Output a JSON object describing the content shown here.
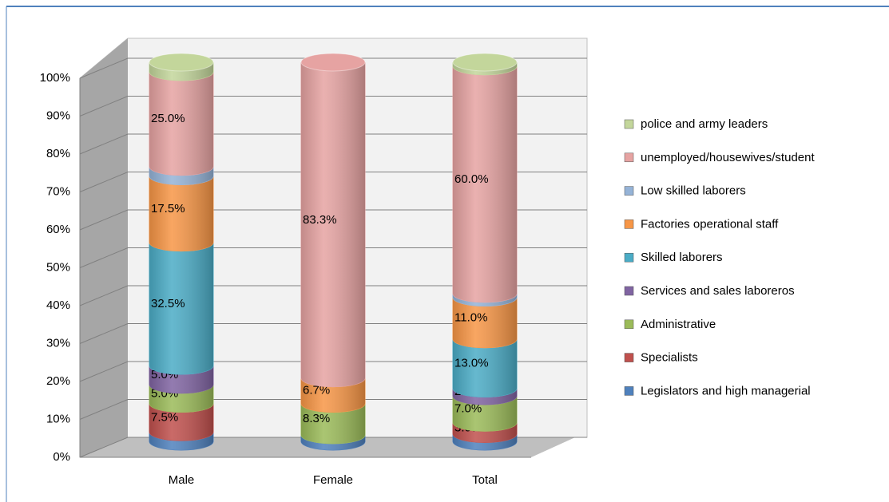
{
  "chart_data": {
    "type": "stacked-cylinder",
    "categories": [
      "Male",
      "Female",
      "Total"
    ],
    "ylim": [
      0,
      100
    ],
    "yticks": [
      {
        "value": 0,
        "label": "0%"
      },
      {
        "value": 10,
        "label": "10%"
      },
      {
        "value": 20,
        "label": "20%"
      },
      {
        "value": 30,
        "label": "30%"
      },
      {
        "value": 40,
        "label": "40%"
      },
      {
        "value": 50,
        "label": "50%"
      },
      {
        "value": 60,
        "label": "60%"
      },
      {
        "value": 70,
        "label": "70%"
      },
      {
        "value": 80,
        "label": "80%"
      },
      {
        "value": 90,
        "label": "90%"
      },
      {
        "value": 100,
        "label": "100%"
      }
    ],
    "grid": true,
    "legend": "right",
    "series": [
      {
        "name": "Legislators and high managerial",
        "color": "#4f81bd",
        "values": [
          2.5,
          1.7,
          2.0
        ],
        "value_labels": [
          null,
          null,
          null
        ]
      },
      {
        "name": "Specialists",
        "color": "#c0504d",
        "values": [
          7.5,
          0,
          3.0
        ],
        "value_labels": [
          "7.5%",
          null,
          "3.0%"
        ]
      },
      {
        "name": "Administrative",
        "color": "#9bbb59",
        "values": [
          5.0,
          8.3,
          7.0
        ],
        "value_labels": [
          "5.0%",
          "8.3%",
          "7.0%"
        ]
      },
      {
        "name": "Services and sales laboreros",
        "color": "#8064a2",
        "values": [
          5.0,
          0,
          2.0
        ],
        "value_labels": [
          "5.0%",
          null,
          "2.0%"
        ]
      },
      {
        "name": "Skilled laborers",
        "color": "#4bacc6",
        "values": [
          32.5,
          0,
          13.0
        ],
        "value_labels": [
          "32.5%",
          null,
          "13.0%"
        ]
      },
      {
        "name": "Factories operational staff",
        "color": "#f79646",
        "values": [
          17.5,
          6.7,
          11.0
        ],
        "value_labels": [
          "17.5%",
          "6.7%",
          "11.0%"
        ]
      },
      {
        "name": "Low skilled laborers",
        "color": "#95b3d7",
        "values": [
          2.5,
          0,
          1.0
        ],
        "value_labels": [
          null,
          null,
          null
        ]
      },
      {
        "name": "unemployed/housewives/student",
        "color": "#e6a3a2",
        "values": [
          25.0,
          83.3,
          60.0
        ],
        "value_labels": [
          "25.0%",
          "83.3%",
          "60.0%"
        ]
      },
      {
        "name": "police and army leaders",
        "color": "#c3d69b",
        "values": [
          2.5,
          0,
          1.0
        ],
        "value_labels": [
          null,
          null,
          null
        ]
      }
    ]
  }
}
